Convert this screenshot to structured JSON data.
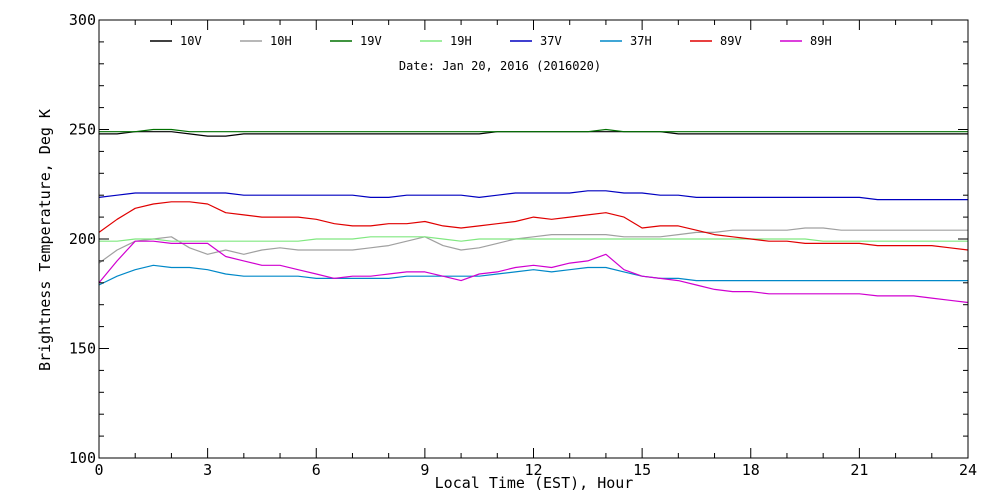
{
  "chart_data": {
    "type": "line",
    "title": "",
    "annotation": "Date: Jan 20, 2016 (2016020)",
    "xlabel": "Local Time (EST), Hour",
    "ylabel": "Brightness Temperature, Deg K",
    "xlim": [
      0,
      24
    ],
    "ylim": [
      100,
      300
    ],
    "xticks": [
      0,
      3,
      6,
      9,
      12,
      15,
      18,
      21,
      24
    ],
    "yticks": [
      100,
      150,
      200,
      250,
      300
    ],
    "grid": false,
    "legend_position": "top, single row",
    "x": [
      0,
      0.5,
      1,
      1.5,
      2,
      2.5,
      3,
      3.5,
      4,
      4.5,
      5,
      5.5,
      6,
      6.5,
      7,
      7.5,
      8,
      8.5,
      9,
      9.5,
      10,
      10.5,
      11,
      11.5,
      12,
      12.5,
      13,
      13.5,
      14,
      14.5,
      15,
      15.5,
      16,
      16.5,
      17,
      17.5,
      18,
      18.5,
      19,
      19.5,
      20,
      20.5,
      21,
      21.5,
      22,
      22.5,
      23,
      23.5,
      24
    ],
    "series": [
      {
        "name": "10V",
        "color": "#000000",
        "values": [
          248,
          248,
          249,
          249,
          249,
          248,
          247,
          247,
          248,
          248,
          248,
          248,
          248,
          248,
          248,
          248,
          248,
          248,
          248,
          248,
          248,
          248,
          249,
          249,
          249,
          249,
          249,
          249,
          249,
          249,
          249,
          249,
          248,
          248,
          248,
          248,
          248,
          248,
          248,
          248,
          248,
          248,
          248,
          248,
          248,
          248,
          248,
          248,
          248
        ]
      },
      {
        "name": "10H",
        "color": "#a0a0a0",
        "values": [
          189,
          195,
          199,
          200,
          201,
          196,
          193,
          195,
          193,
          195,
          196,
          195,
          195,
          195,
          195,
          196,
          197,
          199,
          201,
          197,
          195,
          196,
          198,
          200,
          201,
          202,
          202,
          202,
          202,
          201,
          201,
          201,
          202,
          203,
          203,
          204,
          204,
          204,
          204,
          205,
          205,
          204,
          204,
          204,
          204,
          204,
          204,
          204,
          204
        ]
      },
      {
        "name": "19V",
        "color": "#007000",
        "values": [
          249,
          249,
          249,
          250,
          250,
          249,
          249,
          249,
          249,
          249,
          249,
          249,
          249,
          249,
          249,
          249,
          249,
          249,
          249,
          249,
          249,
          249,
          249,
          249,
          249,
          249,
          249,
          249,
          250,
          249,
          249,
          249,
          249,
          249,
          249,
          249,
          249,
          249,
          249,
          249,
          249,
          249,
          249,
          249,
          249,
          249,
          249,
          249,
          249
        ]
      },
      {
        "name": "19H",
        "color": "#80e880",
        "values": [
          199,
          199,
          200,
          200,
          199,
          199,
          199,
          199,
          199,
          199,
          199,
          199,
          200,
          200,
          200,
          201,
          201,
          201,
          201,
          200,
          199,
          200,
          200,
          200,
          200,
          200,
          200,
          200,
          200,
          200,
          200,
          200,
          200,
          200,
          200,
          200,
          200,
          200,
          200,
          200,
          199,
          199,
          199,
          199,
          199,
          199,
          199,
          199,
          199
        ]
      },
      {
        "name": "37V",
        "color": "#0000c0",
        "values": [
          219,
          220,
          221,
          221,
          221,
          221,
          221,
          221,
          220,
          220,
          220,
          220,
          220,
          220,
          220,
          219,
          219,
          220,
          220,
          220,
          220,
          219,
          220,
          221,
          221,
          221,
          221,
          222,
          222,
          221,
          221,
          220,
          220,
          219,
          219,
          219,
          219,
          219,
          219,
          219,
          219,
          219,
          219,
          218,
          218,
          218,
          218,
          218,
          218
        ]
      },
      {
        "name": "37H",
        "color": "#0088c8",
        "values": [
          179,
          183,
          186,
          188,
          187,
          187,
          186,
          184,
          183,
          183,
          183,
          183,
          182,
          182,
          182,
          182,
          182,
          183,
          183,
          183,
          183,
          183,
          184,
          185,
          186,
          185,
          186,
          187,
          187,
          185,
          183,
          182,
          182,
          181,
          181,
          181,
          181,
          181,
          181,
          181,
          181,
          181,
          181,
          181,
          181,
          181,
          181,
          181,
          181
        ]
      },
      {
        "name": "89V",
        "color": "#e00000",
        "values": [
          203,
          209,
          214,
          216,
          217,
          217,
          216,
          212,
          211,
          210,
          210,
          210,
          209,
          207,
          206,
          206,
          207,
          207,
          208,
          206,
          205,
          206,
          207,
          208,
          210,
          209,
          210,
          211,
          212,
          210,
          205,
          206,
          206,
          204,
          202,
          201,
          200,
          199,
          199,
          198,
          198,
          198,
          198,
          197,
          197,
          197,
          197,
          196,
          195
        ]
      },
      {
        "name": "89H",
        "color": "#d000d0",
        "values": [
          180,
          190,
          199,
          199,
          198,
          198,
          198,
          192,
          190,
          188,
          188,
          186,
          184,
          182,
          183,
          183,
          184,
          185,
          185,
          183,
          181,
          184,
          185,
          187,
          188,
          187,
          189,
          190,
          193,
          186,
          183,
          182,
          181,
          179,
          177,
          176,
          176,
          175,
          175,
          175,
          175,
          175,
          175,
          174,
          174,
          174,
          173,
          172,
          171
        ]
      }
    ]
  }
}
